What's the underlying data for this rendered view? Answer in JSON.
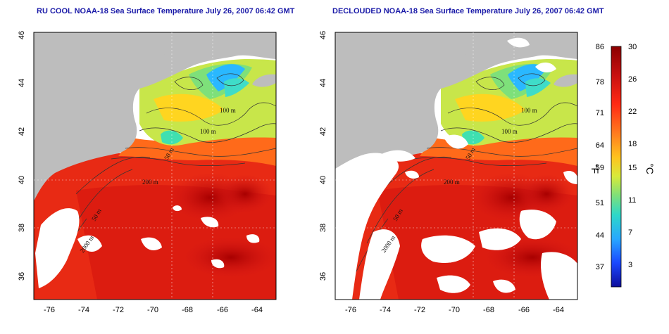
{
  "titles": {
    "left": "RU COOL NOAA-18 Sea Surface Temperature July 26, 2007 06:42 GMT",
    "right": "DECLOUDED NOAA-18 Sea Surface Temperature July 26, 2007 06:42 GMT"
  },
  "axes": {
    "lon_ticks": [
      "-76",
      "-74",
      "-72",
      "-70",
      "-68",
      "-66",
      "-64"
    ],
    "lat_ticks": [
      "46",
      "44",
      "42",
      "40",
      "38",
      "36"
    ],
    "lon_range": [
      -77,
      -63
    ],
    "lat_range": [
      35,
      46
    ]
  },
  "contour_labels": [
    "100 m",
    "100 m",
    "50 m",
    "200 m",
    "50 m",
    "2000 m"
  ],
  "colorbar": {
    "celsius_ticks": [
      "30",
      "26",
      "22",
      "18",
      "15",
      "11",
      "7",
      "3"
    ],
    "fahrenheit_ticks": [
      "86",
      "78",
      "71",
      "64",
      "59",
      "51",
      "44",
      "37"
    ],
    "celsius_label": "°C",
    "fahrenheit_label": "°F",
    "colors": [
      "#8b0000",
      "#d01010",
      "#ff3a1a",
      "#ff8a1e",
      "#ffd21e",
      "#b8e84a",
      "#3fe0b0",
      "#2ab0ff",
      "#1a4cff",
      "#1010a0"
    ]
  },
  "colors": {
    "land": "#bdbdbd",
    "cloud": "#ffffff",
    "title": "#1a1aa8"
  }
}
